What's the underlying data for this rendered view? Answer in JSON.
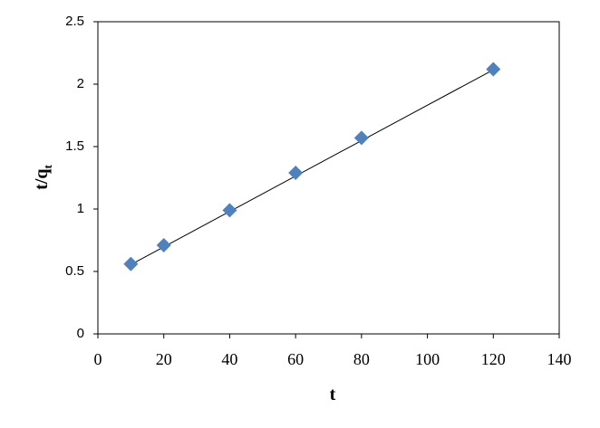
{
  "chart_data": {
    "type": "scatter",
    "x_label": "t",
    "y_label": {
      "main": "t/q",
      "sub": "t"
    },
    "series": [
      {
        "color": "#4f81bd",
        "x": [
          10,
          20,
          40,
          60,
          80,
          120
        ],
        "values": [
          0.56,
          0.71,
          0.99,
          1.29,
          1.57,
          2.12
        ]
      }
    ],
    "trendline": {
      "color": "#000000",
      "x": [
        10,
        120
      ],
      "values": [
        0.555,
        2.115
      ]
    },
    "xlim": [
      0,
      140
    ],
    "xticks": [
      0,
      20,
      40,
      60,
      80,
      100,
      120,
      140
    ],
    "ylim": [
      0,
      2.5
    ],
    "yticks": [
      0,
      0.5,
      1,
      1.5,
      2,
      2.5
    ],
    "grid": false
  }
}
